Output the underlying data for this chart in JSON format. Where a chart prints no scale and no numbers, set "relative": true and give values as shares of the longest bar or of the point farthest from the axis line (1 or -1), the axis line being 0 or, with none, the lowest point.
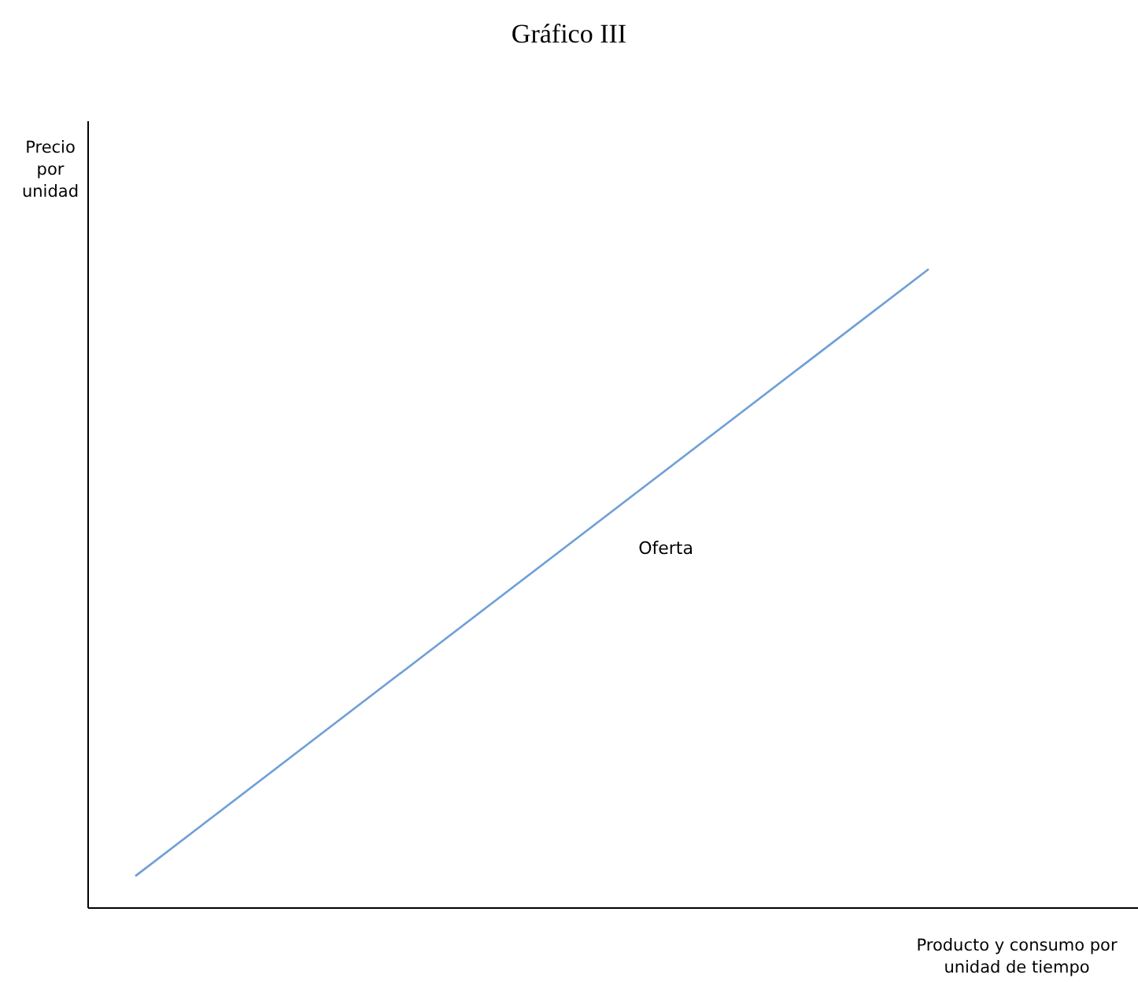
{
  "chart_data": {
    "type": "line",
    "title": "Gráfico III",
    "xlabel": "Producto y consumo por unidad de tiempo",
    "ylabel": "Precio por unidad",
    "relative": true,
    "categories": [
      null,
      null
    ],
    "series": [
      {
        "name": "Oferta",
        "color": "#6f9fd8",
        "values": [
          0.05,
          1
        ]
      }
    ]
  }
}
